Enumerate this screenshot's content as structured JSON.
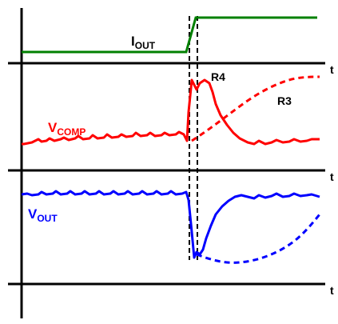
{
  "colors": {
    "iout": "#008000",
    "vcomp": "#ff0000",
    "vout": "#0000ff",
    "axis": "#000000"
  },
  "labels": {
    "iout_main": "I",
    "iout_sub": "OUT",
    "vcomp_main": "V",
    "vcomp_sub": "COMP",
    "vout_main": "V",
    "vout_sub": "OUT",
    "r4": "R4",
    "r3": "R3",
    "t1": "t",
    "t2": "t",
    "t3": "t"
  }
}
